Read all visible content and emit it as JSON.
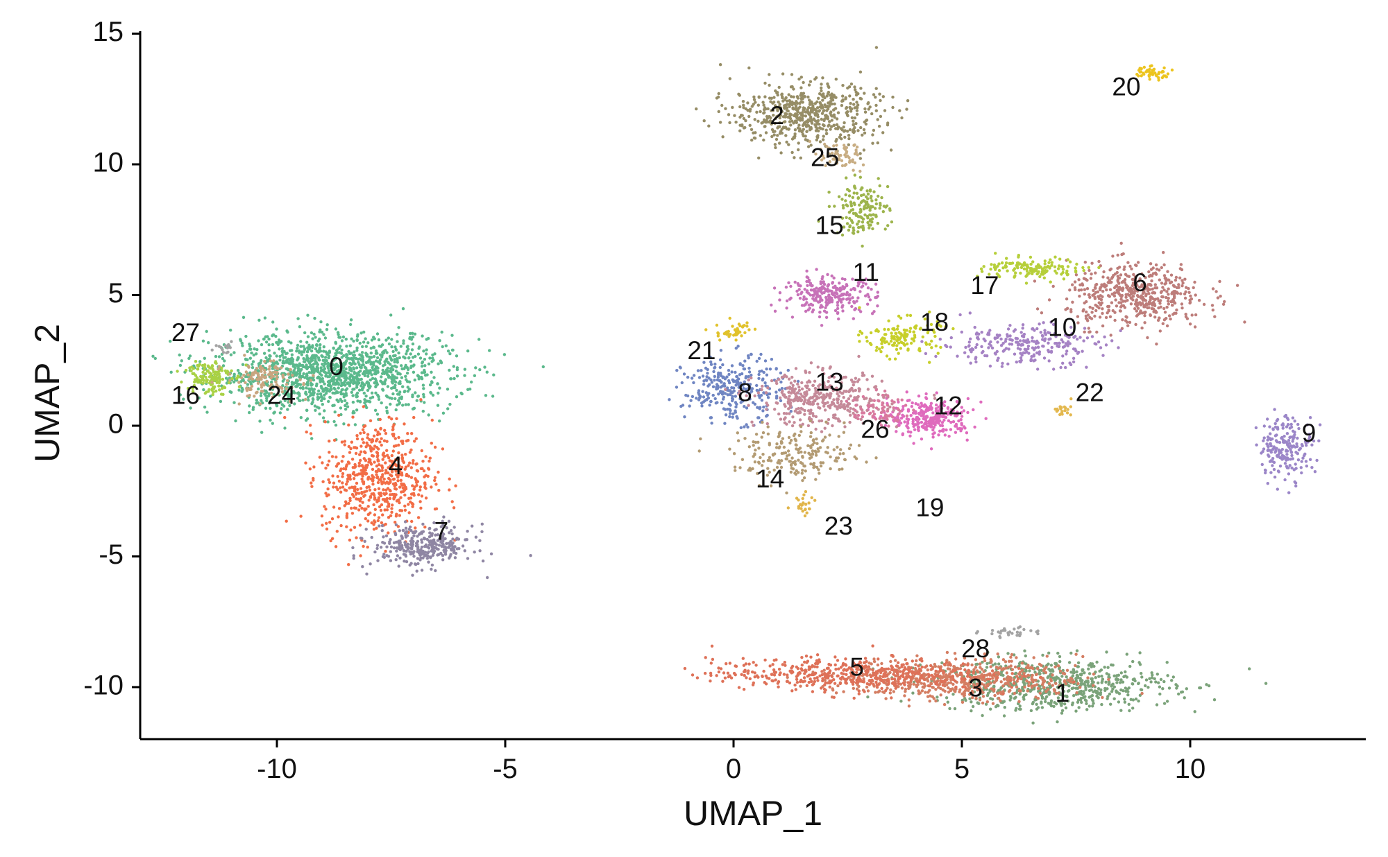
{
  "chart_data": {
    "type": "scatter",
    "title": "",
    "xlabel": "UMAP_1",
    "ylabel": "UMAP_2",
    "xlim": [
      -13,
      14
    ],
    "ylim": [
      -12,
      15
    ],
    "xticks": [
      -10,
      -5,
      0,
      5,
      10
    ],
    "yticks": [
      -10,
      -5,
      0,
      5,
      10,
      15
    ],
    "xtick_labels": [
      "-10",
      "-5",
      "0",
      "5",
      "10"
    ],
    "ytick_labels": [
      "-10",
      "-5",
      "0",
      "5",
      "10",
      "15"
    ],
    "grid": false,
    "legend": "none",
    "clusters": [
      {
        "label": "0",
        "x": -8.8,
        "y": 2.0,
        "sx": 1.3,
        "sy": 0.75,
        "n": 1400,
        "color": "#5bb98c"
      },
      {
        "label": "1",
        "x": 7.0,
        "y": -9.9,
        "sx": 1.3,
        "sy": 0.5,
        "n": 650,
        "color": "#7ba37a"
      },
      {
        "label": "2",
        "x": 1.6,
        "y": 11.9,
        "sx": 0.8,
        "sy": 0.6,
        "n": 600,
        "color": "#968d66"
      },
      {
        "label": "3",
        "x": 5.0,
        "y": -9.7,
        "sx": 1.3,
        "sy": 0.4,
        "n": 550,
        "color": "#d47e63"
      },
      {
        "label": "4",
        "x": -7.8,
        "y": -2.0,
        "sx": 0.6,
        "sy": 1.1,
        "n": 600,
        "color": "#f26d46"
      },
      {
        "label": "5",
        "x": 2.5,
        "y": -9.5,
        "sx": 1.5,
        "sy": 0.3,
        "n": 500,
        "color": "#de7158"
      },
      {
        "label": "6",
        "x": 8.8,
        "y": 5.0,
        "sx": 0.75,
        "sy": 0.6,
        "n": 500,
        "color": "#bd7d7a"
      },
      {
        "label": "7",
        "x": -6.8,
        "y": -4.6,
        "sx": 0.55,
        "sy": 0.4,
        "n": 320,
        "color": "#8f86a3"
      },
      {
        "label": "8",
        "x": 0.0,
        "y": 1.4,
        "sx": 0.55,
        "sy": 0.6,
        "n": 300,
        "color": "#6f85c2"
      },
      {
        "label": "9",
        "x": 12.1,
        "y": -0.8,
        "sx": 0.3,
        "sy": 0.6,
        "n": 200,
        "color": "#9b86c8"
      },
      {
        "label": "10",
        "x": 6.3,
        "y": 3.1,
        "sx": 0.9,
        "sy": 0.4,
        "n": 250,
        "color": "#a582c4"
      },
      {
        "label": "11",
        "x": 2.1,
        "y": 5.0,
        "sx": 0.5,
        "sy": 0.35,
        "n": 250,
        "color": "#c772b8"
      },
      {
        "label": "12",
        "x": 4.3,
        "y": 0.3,
        "sx": 0.45,
        "sy": 0.35,
        "n": 280,
        "color": "#df6bbd"
      },
      {
        "label": "13",
        "x": 1.9,
        "y": 1.0,
        "sx": 0.7,
        "sy": 0.5,
        "n": 380,
        "color": "#c58a99"
      },
      {
        "label": "14",
        "x": 1.4,
        "y": -1.1,
        "sx": 0.7,
        "sy": 0.5,
        "n": 200,
        "color": "#b39b73"
      },
      {
        "label": "15",
        "x": 2.8,
        "y": 8.3,
        "sx": 0.3,
        "sy": 0.5,
        "n": 150,
        "color": "#9db44c"
      },
      {
        "label": "16",
        "x": -11.5,
        "y": 1.9,
        "sx": 0.25,
        "sy": 0.35,
        "n": 130,
        "color": "#a9d145"
      },
      {
        "label": "17",
        "x": 6.6,
        "y": 6.0,
        "sx": 0.55,
        "sy": 0.2,
        "n": 140,
        "color": "#b6cf3a"
      },
      {
        "label": "18",
        "x": 3.7,
        "y": 3.4,
        "sx": 0.4,
        "sy": 0.35,
        "n": 140,
        "color": "#c7cf2a"
      },
      {
        "label": "19",
        "x": 4.2,
        "y": -3.1,
        "sx": 0.05,
        "sy": 0.05,
        "n": 0,
        "color": "#b4a57a"
      },
      {
        "label": "20",
        "x": 9.1,
        "y": 13.5,
        "sx": 0.25,
        "sy": 0.12,
        "n": 45,
        "color": "#ecc41e"
      },
      {
        "label": "21",
        "x": 0.0,
        "y": 3.6,
        "sx": 0.2,
        "sy": 0.2,
        "n": 40,
        "color": "#e1c22c"
      },
      {
        "label": "22",
        "x": 7.2,
        "y": 0.6,
        "sx": 0.1,
        "sy": 0.1,
        "n": 20,
        "color": "#e3b84e"
      },
      {
        "label": "23",
        "x": 1.6,
        "y": -3.0,
        "sx": 0.15,
        "sy": 0.2,
        "n": 25,
        "color": "#e1b54a"
      },
      {
        "label": "24",
        "x": -10.3,
        "y": 1.8,
        "sx": 0.4,
        "sy": 0.35,
        "n": 120,
        "color": "#c8a57f"
      },
      {
        "label": "25",
        "x": 2.3,
        "y": 10.3,
        "sx": 0.3,
        "sy": 0.25,
        "n": 60,
        "color": "#c8ad83"
      },
      {
        "label": "26",
        "x": 3.2,
        "y": 0.6,
        "sx": 0.3,
        "sy": 0.3,
        "n": 70,
        "color": "#d87a9e"
      },
      {
        "label": "27",
        "x": -11.2,
        "y": 3.0,
        "sx": 0.1,
        "sy": 0.1,
        "n": 15,
        "color": "#a3a3a3"
      },
      {
        "label": "28",
        "x": 6.0,
        "y": -7.9,
        "sx": 0.3,
        "sy": 0.1,
        "n": 30,
        "color": "#a3a3a3"
      }
    ],
    "label_positions": [
      {
        "label": "0",
        "x": -8.7,
        "y": 2.2
      },
      {
        "label": "1",
        "x": 7.2,
        "y": -10.3
      },
      {
        "label": "2",
        "x": 0.95,
        "y": 11.8
      },
      {
        "label": "3",
        "x": 5.3,
        "y": -10.1
      },
      {
        "label": "4",
        "x": -7.4,
        "y": -1.6
      },
      {
        "label": "5",
        "x": 2.7,
        "y": -9.3
      },
      {
        "label": "6",
        "x": 8.9,
        "y": 5.4
      },
      {
        "label": "7",
        "x": -6.4,
        "y": -4.1
      },
      {
        "label": "8",
        "x": 0.25,
        "y": 1.2
      },
      {
        "label": "9",
        "x": 12.6,
        "y": -0.35
      },
      {
        "label": "10",
        "x": 7.2,
        "y": 3.7
      },
      {
        "label": "11",
        "x": 2.9,
        "y": 5.8
      },
      {
        "label": "12",
        "x": 4.7,
        "y": 0.7
      },
      {
        "label": "13",
        "x": 2.1,
        "y": 1.6
      },
      {
        "label": "14",
        "x": 0.8,
        "y": -2.1
      },
      {
        "label": "15",
        "x": 2.1,
        "y": 7.6
      },
      {
        "label": "16",
        "x": -12.0,
        "y": 1.1
      },
      {
        "label": "17",
        "x": 5.5,
        "y": 5.3
      },
      {
        "label": "18",
        "x": 4.4,
        "y": 3.9
      },
      {
        "label": "19",
        "x": 4.3,
        "y": -3.2
      },
      {
        "label": "20",
        "x": 8.6,
        "y": 12.9
      },
      {
        "label": "21",
        "x": -0.7,
        "y": 2.8
      },
      {
        "label": "22",
        "x": 7.8,
        "y": 1.2
      },
      {
        "label": "23",
        "x": 2.3,
        "y": -3.9
      },
      {
        "label": "24",
        "x": -9.9,
        "y": 1.1
      },
      {
        "label": "25",
        "x": 2.0,
        "y": 10.2
      },
      {
        "label": "26",
        "x": 3.1,
        "y": -0.2
      },
      {
        "label": "27",
        "x": -12.0,
        "y": 3.5
      },
      {
        "label": "28",
        "x": 5.3,
        "y": -8.6
      }
    ]
  }
}
